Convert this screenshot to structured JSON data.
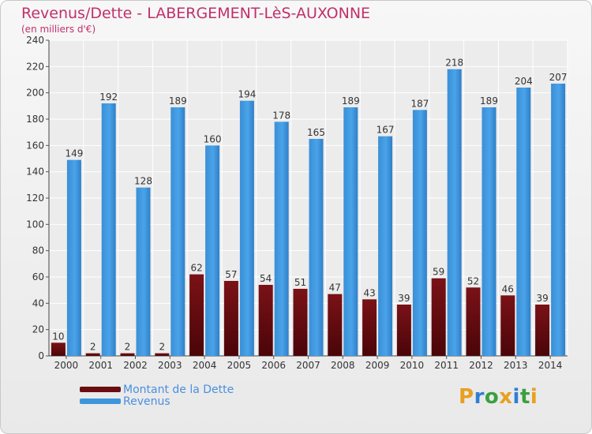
{
  "header": {
    "title": "Revenus/Dette - LABERGEMENT-LèS-AUXONNE",
    "subtitle": "(en milliers d'€)"
  },
  "legend": {
    "items": [
      {
        "label": "Montant de la Dette",
        "color": "#6b0d10"
      },
      {
        "label": "Revenus",
        "color": "#3d95dc"
      }
    ]
  },
  "logo": {
    "letters": [
      {
        "ch": "P",
        "color": "#e8a020"
      },
      {
        "ch": "r",
        "color": "#2f7fd3"
      },
      {
        "ch": "o",
        "color": "#3aa040"
      },
      {
        "ch": "x",
        "color": "#e8a020"
      },
      {
        "ch": "i",
        "color": "#2f7fd3"
      },
      {
        "ch": "t",
        "color": "#3aa040"
      },
      {
        "ch": "i",
        "color": "#e8a020"
      }
    ]
  },
  "chart_data": {
    "type": "bar",
    "title": "Revenus/Dette - LABERGEMENT-LèS-AUXONNE",
    "subtitle": "(en milliers d'€)",
    "xlabel": "",
    "ylabel": "",
    "categories": [
      "2000",
      "2001",
      "2002",
      "2003",
      "2004",
      "2005",
      "2006",
      "2007",
      "2008",
      "2009",
      "2010",
      "2011",
      "2012",
      "2013",
      "2014"
    ],
    "series": [
      {
        "name": "Montant de la Dette",
        "color": "#6b0d10",
        "values": [
          10,
          2,
          2,
          2,
          62,
          57,
          54,
          51,
          47,
          43,
          39,
          59,
          52,
          46,
          39
        ]
      },
      {
        "name": "Revenus",
        "color": "#3d95dc",
        "values": [
          149,
          192,
          128,
          189,
          160,
          194,
          178,
          165,
          189,
          167,
          187,
          218,
          189,
          204,
          207
        ]
      }
    ],
    "ylim": [
      0,
      240
    ],
    "yticks": [
      0,
      20,
      40,
      60,
      80,
      100,
      120,
      140,
      160,
      180,
      200,
      220,
      240
    ],
    "grid": true,
    "legend_position": "bottom-left"
  }
}
